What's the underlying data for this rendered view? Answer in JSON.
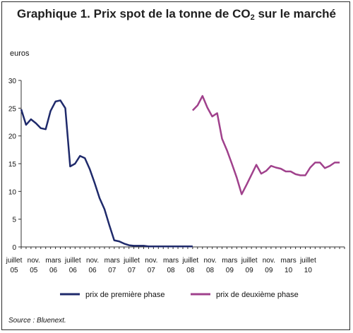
{
  "chart_data": {
    "type": "line",
    "title_prefix": "Graphique 1. Prix spot de la tonne de CO",
    "title_sub": "2",
    "title_suffix": " sur le marché",
    "ylabel": "euros",
    "ylim": [
      0,
      30
    ],
    "yticks": [
      0,
      5,
      10,
      15,
      20,
      25,
      30
    ],
    "xlim": [
      0,
      66
    ],
    "x_tick_labels": [
      {
        "x": 0,
        "line1": "juillet",
        "line2": "05"
      },
      {
        "x": 4,
        "line1": "nov.",
        "line2": "05"
      },
      {
        "x": 8,
        "line1": "mars",
        "line2": "06"
      },
      {
        "x": 12,
        "line1": "juillet",
        "line2": "06"
      },
      {
        "x": 16,
        "line1": "nov.",
        "line2": "06"
      },
      {
        "x": 20,
        "line1": "mars",
        "line2": "07"
      },
      {
        "x": 24,
        "line1": "juillet",
        "line2": "07"
      },
      {
        "x": 28,
        "line1": "nov.",
        "line2": "07"
      },
      {
        "x": 32,
        "line1": "mars",
        "line2": "08"
      },
      {
        "x": 36,
        "line1": "juillet",
        "line2": "08"
      },
      {
        "x": 40,
        "line1": "nov.",
        "line2": "08"
      },
      {
        "x": 44,
        "line1": "mars",
        "line2": "09"
      },
      {
        "x": 48,
        "line1": "juillet",
        "line2": "09"
      },
      {
        "x": 52,
        "line1": "nov.",
        "line2": "09"
      },
      {
        "x": 56,
        "line1": "mars",
        "line2": "10"
      },
      {
        "x": 60,
        "line1": "juillet",
        "line2": "10"
      }
    ],
    "grid": false,
    "legend_position": "bottom",
    "series": [
      {
        "name": "prix de première phase",
        "color": "#1f2a6b",
        "x": [
          0,
          1,
          2,
          3,
          4,
          5,
          6,
          7,
          8,
          9,
          10,
          11,
          12,
          13,
          14,
          15,
          16,
          17,
          18,
          19,
          20,
          21,
          22,
          23,
          24,
          25,
          26,
          27,
          28,
          29,
          30,
          31,
          32,
          33,
          34,
          35
        ],
        "values": [
          24.8,
          22.0,
          23.0,
          22.3,
          21.4,
          21.2,
          24.5,
          26.2,
          26.4,
          25.0,
          14.5,
          15.0,
          16.4,
          16.0,
          14.0,
          11.5,
          8.8,
          6.8,
          3.9,
          1.2,
          1.0,
          0.6,
          0.3,
          0.2,
          0.2,
          0.2,
          0.1,
          0.1,
          0.1,
          0.1,
          0.1,
          0.1,
          0.1,
          0.1,
          0.1,
          0.1
        ]
      },
      {
        "name": "prix de deuxième phase",
        "color": "#a0418c",
        "x": [
          35,
          36,
          37,
          38,
          39,
          40,
          41,
          42,
          43,
          44,
          45,
          46,
          47,
          48,
          49,
          50,
          51,
          52,
          53,
          54,
          55,
          56,
          57,
          58,
          59,
          60,
          61,
          62,
          63,
          64,
          65
        ],
        "values": [
          24.6,
          25.5,
          27.2,
          25.1,
          23.5,
          24.1,
          19.5,
          17.4,
          15.0,
          12.5,
          9.5,
          11.2,
          13.0,
          14.8,
          13.2,
          13.7,
          14.6,
          14.3,
          14.1,
          13.6,
          13.6,
          13.1,
          12.9,
          12.9,
          14.3,
          15.2,
          15.2,
          14.2,
          14.6,
          15.2,
          15.2
        ]
      }
    ]
  },
  "footer": {
    "source": "Source : Bluenext."
  }
}
